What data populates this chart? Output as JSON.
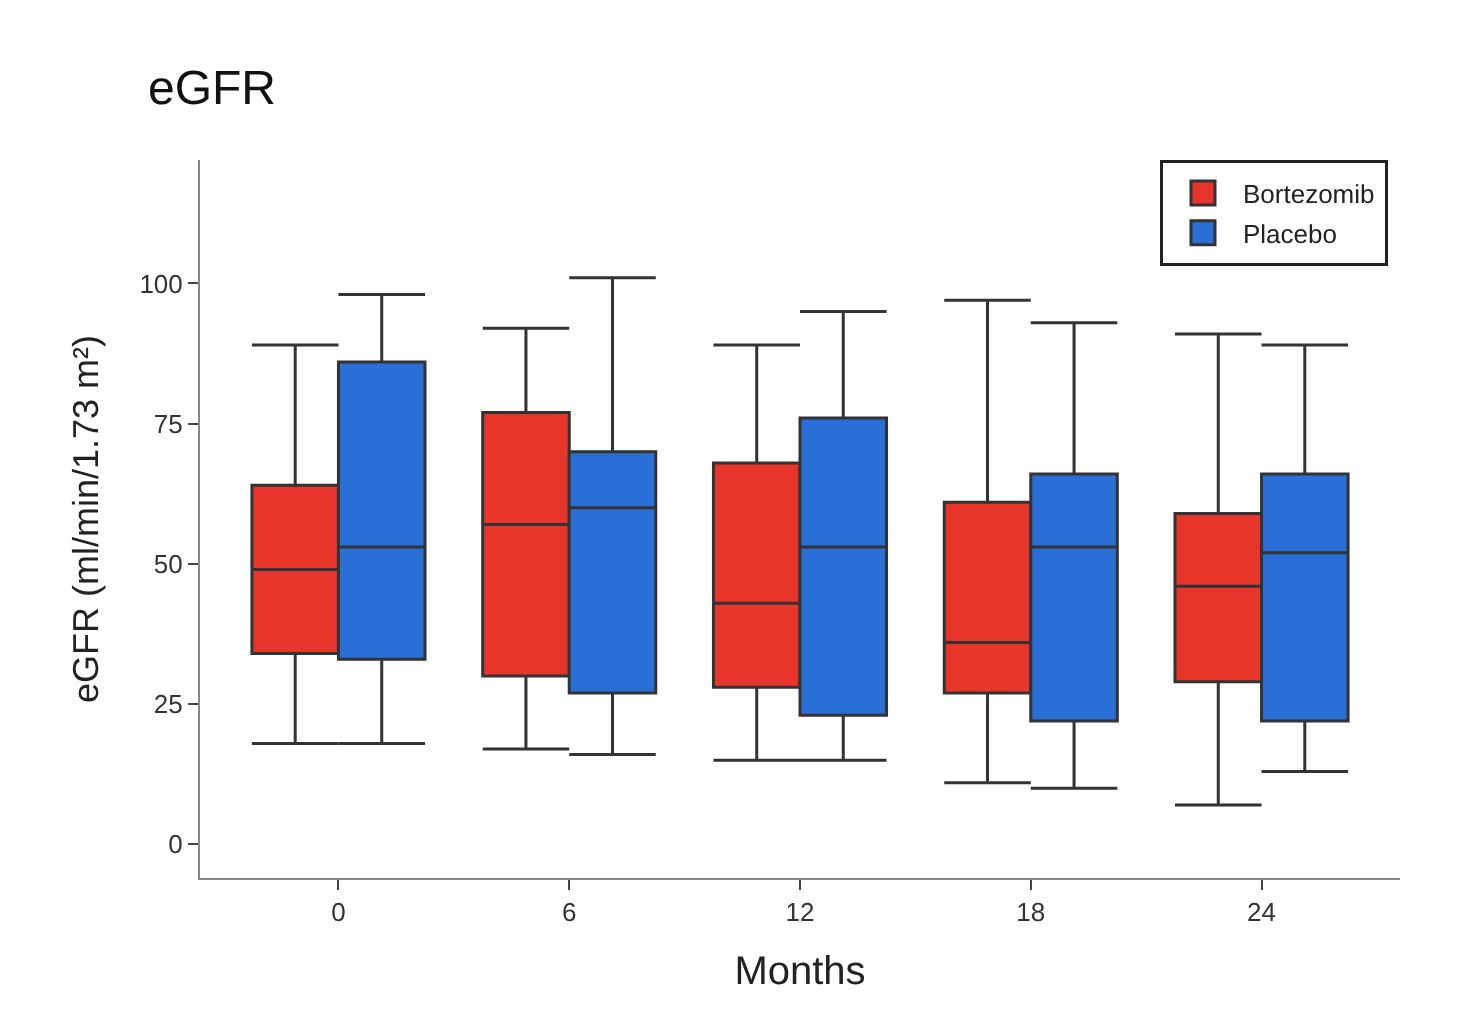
{
  "chart_data": {
    "type": "box",
    "title": "eGFR",
    "xlabel": "Months",
    "ylabel": "eGFR (ml/min/1.73 m²)",
    "categories": [
      "0",
      "6",
      "12",
      "18",
      "24"
    ],
    "series": [
      {
        "name": "Bortezomib",
        "color": "#e8352b",
        "boxes": [
          {
            "low": 18,
            "q1": 34,
            "median": 49,
            "q3": 64,
            "high": 89
          },
          {
            "low": 17,
            "q1": 30,
            "median": 57,
            "q3": 77,
            "high": 92
          },
          {
            "low": 15,
            "q1": 28,
            "median": 43,
            "q3": 68,
            "high": 89
          },
          {
            "low": 11,
            "q1": 27,
            "median": 36,
            "q3": 61,
            "high": 97
          },
          {
            "low": 7,
            "q1": 29,
            "median": 46,
            "q3": 59,
            "high": 91
          }
        ]
      },
      {
        "name": "Placebo",
        "color": "#2a6fd6",
        "boxes": [
          {
            "low": 18,
            "q1": 33,
            "median": 53,
            "q3": 86,
            "high": 98
          },
          {
            "low": 16,
            "q1": 27,
            "median": 60,
            "q3": 70,
            "high": 101
          },
          {
            "low": 15,
            "q1": 23,
            "median": 53,
            "q3": 76,
            "high": 95
          },
          {
            "low": 10,
            "q1": 22,
            "median": 53,
            "q3": 66,
            "high": 93
          },
          {
            "low": 13,
            "q1": 22,
            "median": 52,
            "q3": 66,
            "high": 89
          }
        ]
      }
    ],
    "ylim": [
      -6,
      122
    ],
    "yticks": [
      0,
      25,
      50,
      75,
      100
    ],
    "grid": false,
    "legend": "top right"
  }
}
